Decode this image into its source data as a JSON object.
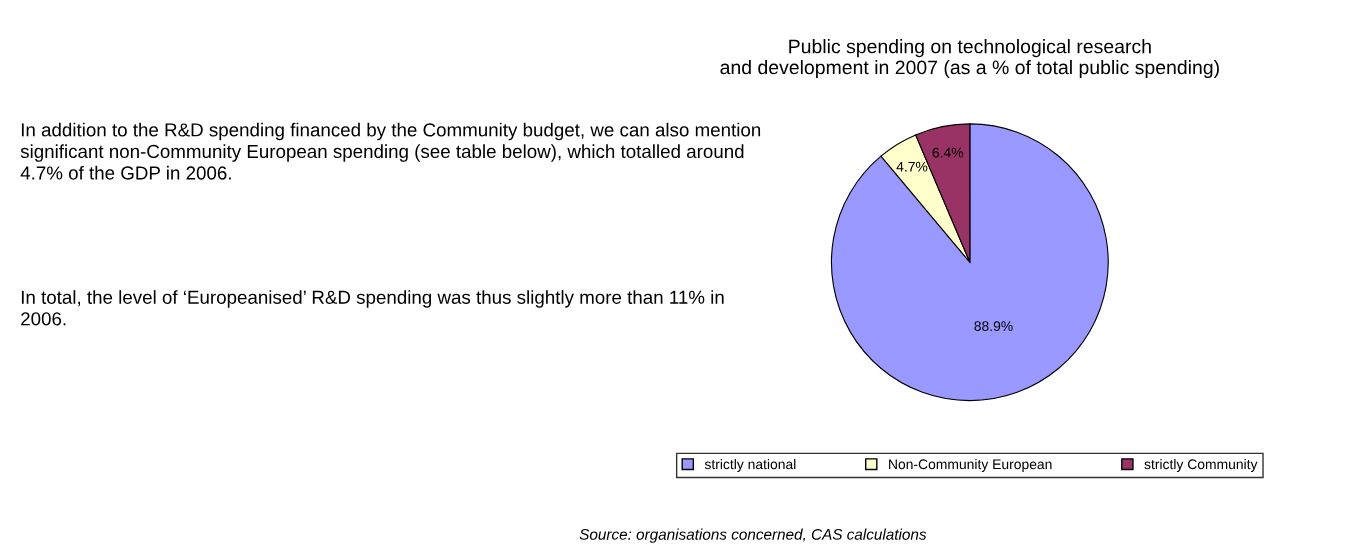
{
  "chart_data": {
    "type": "pie",
    "title": "Public spending on technological research\nand development in 2007 (as a % of total public spending)",
    "categories": [
      "strictly national",
      "Non-Community European",
      "strictly Community"
    ],
    "values": [
      88.9,
      4.7,
      6.4
    ],
    "colors": [
      "#9999ff",
      "#ffffcc",
      "#993366"
    ],
    "value_labels": [
      "88.9%",
      "4.7%",
      "6.4%"
    ],
    "legend": "bottom",
    "annotations": [
      "In addition to the R&D spending financed by the Community budget, we can also mention significant non-Community European spending (see table below), which totalled around 4.7% of the GDP in 2006.",
      "In total, the level of ‘Europeanised’ R&D spending was thus slightly more than 11% in 2006.",
      "Source: organisations concerned, CAS calculations"
    ]
  }
}
